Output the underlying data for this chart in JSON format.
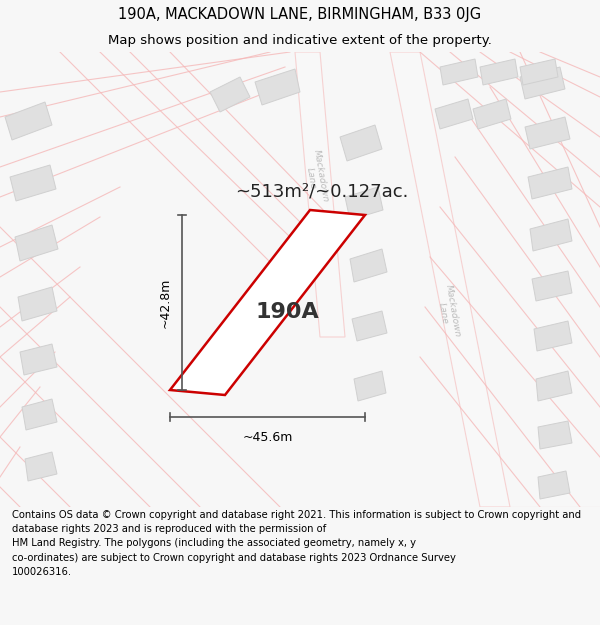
{
  "title_line1": "190A, MACKADOWN LANE, BIRMINGHAM, B33 0JG",
  "title_line2": "Map shows position and indicative extent of the property.",
  "area_text": "~513m²/~0.127ac.",
  "property_label": "190A",
  "dim_width": "~45.6m",
  "dim_height": "~42.8m",
  "footer_text": "Contains OS data © Crown copyright and database right 2021. This information is subject to Crown copyright and database rights 2023 and is reproduced with the permission of\nHM Land Registry. The polygons (including the associated geometry, namely x, y\nco-ordinates) are subject to Crown copyright and database rights 2023 Ordnance Survey\n100026316.",
  "bg_color": "#f7f7f7",
  "map_bg": "#ffffff",
  "property_edge": "#cc0000",
  "road_color": "#f5b8b8",
  "road_label_color": "#bbbbbb",
  "building_color": "#e0e0e0",
  "building_edge": "#d0d0d0",
  "dim_color": "#555555"
}
